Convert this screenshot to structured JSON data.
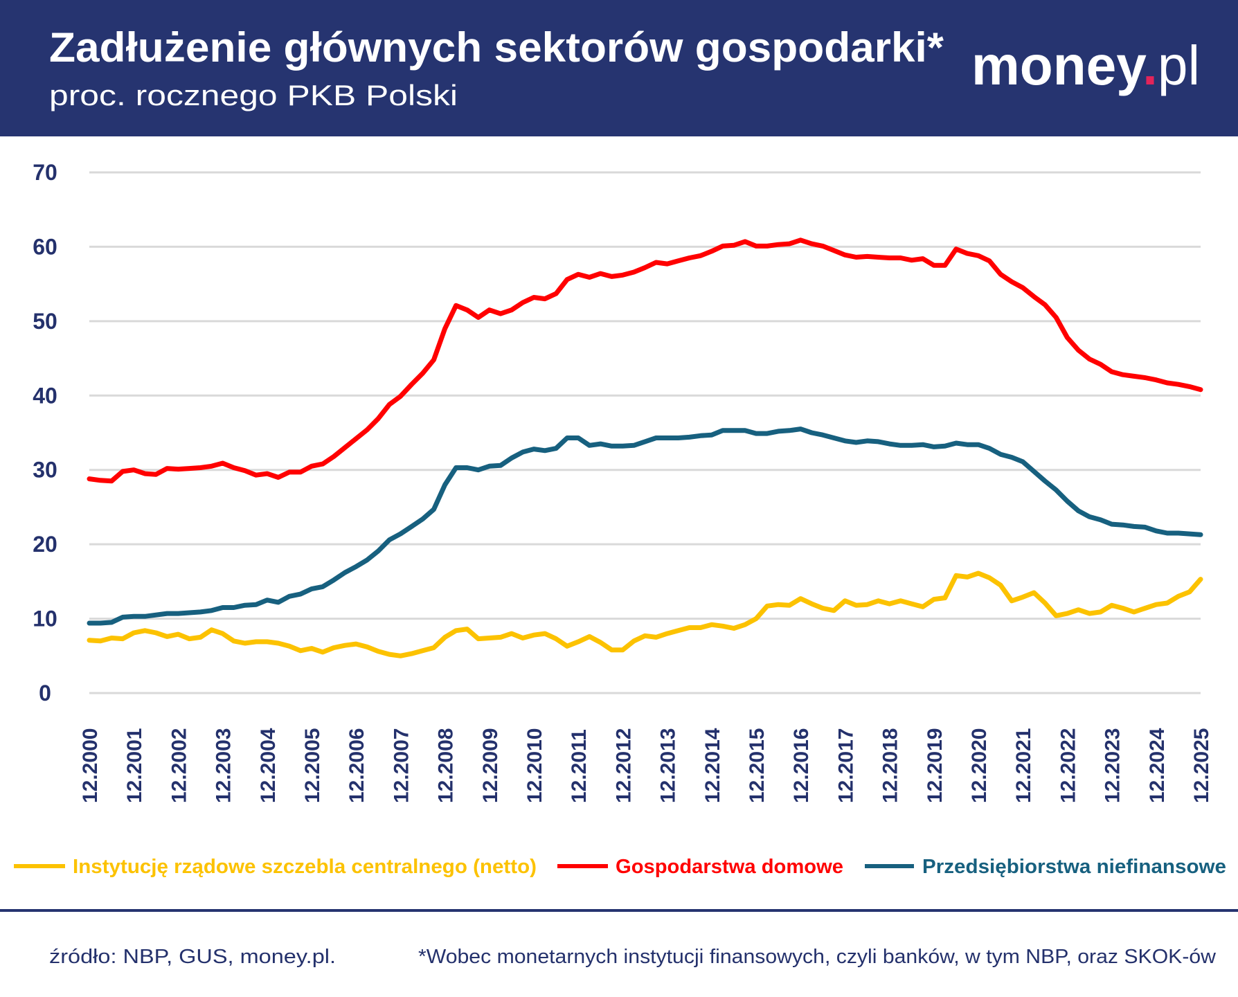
{
  "header": {
    "title": "Zadłużenie głównych sektorów gospodarki*",
    "subtitle": "proc. rocznego PKB Polski",
    "logo_main": "money",
    "logo_dot": ".",
    "logo_suffix": "pl",
    "background_color": "#263470",
    "logo_dot_color": "#e2245a"
  },
  "footer": {
    "source": "źródło: NBP, GUS, money.pl.",
    "note": "*Wobec monetarnych instytucji finansowych, czyli banków, w tym NBP, oraz SKOK-ów"
  },
  "chart_data": {
    "type": "line",
    "title": "Zadłużenie głównych sektorów gospodarki*",
    "subtitle": "proc. rocznego PKB Polski",
    "xlabel": "",
    "ylabel": "",
    "ylim": [
      0,
      70
    ],
    "yticks": [
      "0",
      "10",
      "20",
      "30",
      "40",
      "50",
      "60",
      "70"
    ],
    "grid": true,
    "legend_position": "bottom",
    "x_frequency": "quarterly",
    "x_start": "12.2000",
    "x_end": "12.2025",
    "xticks": [
      "12.2000",
      "12.2001",
      "12.2002",
      "12.2003",
      "12.2004",
      "12.2005",
      "12.2006",
      "12.2007",
      "12.2008",
      "12.2009",
      "12.2010",
      "12.2011",
      "12.2012",
      "12.2013",
      "12.2014",
      "12.2015",
      "12.2016",
      "12.2017",
      "12.2018",
      "12.2019",
      "12.2020",
      "12.2021",
      "12.2022",
      "12.2023",
      "12.2024",
      "12.2025"
    ],
    "series": [
      {
        "name": "Instytucję rządowe szczebla centralnego (netto)",
        "color": "#fcc200",
        "values": [
          7.1,
          7.0,
          7.4,
          7.3,
          8.1,
          8.4,
          8.1,
          7.6,
          7.9,
          7.3,
          7.5,
          8.5,
          8.0,
          7.0,
          6.7,
          6.9,
          6.9,
          6.7,
          6.3,
          5.7,
          6.0,
          5.5,
          6.1,
          6.4,
          6.6,
          6.2,
          5.6,
          5.2,
          5.0,
          5.3,
          5.7,
          6.1,
          7.5,
          8.4,
          8.6,
          7.3,
          7.4,
          7.5,
          8.0,
          7.4,
          7.8,
          8.0,
          7.3,
          6.3,
          6.9,
          7.6,
          6.8,
          5.8,
          5.8,
          7.0,
          7.7,
          7.5,
          8.0,
          8.4,
          8.8,
          8.8,
          9.2,
          9.0,
          8.7,
          9.2,
          10.0,
          11.7,
          11.9,
          11.8,
          12.7,
          12.0,
          11.4,
          11.1,
          12.4,
          11.8,
          11.9,
          12.4,
          12.0,
          12.4,
          12.0,
          11.6,
          12.6,
          12.8,
          15.8,
          15.6,
          16.1,
          15.5,
          14.5,
          12.4,
          12.9,
          13.5,
          12.1,
          10.4,
          10.7,
          11.2,
          10.7,
          10.9,
          11.8,
          11.4,
          10.9,
          11.4,
          11.9,
          12.1,
          13.0,
          13.6,
          15.3
        ]
      },
      {
        "name": "Gospodarstwa domowe",
        "color": "#ff0000",
        "values": [
          28.8,
          28.6,
          28.5,
          29.8,
          30.0,
          29.5,
          29.4,
          30.2,
          30.1,
          30.2,
          30.3,
          30.5,
          30.9,
          30.3,
          29.9,
          29.3,
          29.5,
          29.0,
          29.7,
          29.7,
          30.5,
          30.8,
          31.8,
          33.0,
          34.2,
          35.4,
          36.9,
          38.8,
          39.9,
          41.5,
          43.0,
          44.8,
          49.0,
          52.1,
          51.5,
          50.5,
          51.5,
          51.0,
          51.5,
          52.5,
          53.2,
          53.0,
          53.7,
          55.6,
          56.3,
          55.9,
          56.4,
          56.0,
          56.2,
          56.6,
          57.2,
          57.9,
          57.7,
          58.1,
          58.5,
          58.8,
          59.4,
          60.1,
          60.2,
          60.7,
          60.1,
          60.1,
          60.3,
          60.4,
          60.9,
          60.4,
          60.1,
          59.5,
          58.9,
          58.6,
          58.7,
          58.6,
          58.5,
          58.5,
          58.2,
          58.4,
          57.5,
          57.5,
          59.7,
          59.1,
          58.8,
          58.1,
          56.3,
          55.3,
          54.5,
          53.3,
          52.2,
          50.5,
          47.8,
          46.1,
          44.9,
          44.2,
          43.2,
          42.8,
          42.6,
          42.4,
          42.1,
          41.7,
          41.5,
          41.2,
          40.8
        ]
      },
      {
        "name": "Przedsiębiorstwa niefinansowe",
        "color": "#17607f",
        "values": [
          9.4,
          9.4,
          9.5,
          10.2,
          10.3,
          10.3,
          10.5,
          10.7,
          10.7,
          10.8,
          10.9,
          11.1,
          11.5,
          11.5,
          11.8,
          11.9,
          12.5,
          12.2,
          13.0,
          13.3,
          14.0,
          14.3,
          15.2,
          16.2,
          17.0,
          17.9,
          19.1,
          20.6,
          21.4,
          22.4,
          23.4,
          24.7,
          28.0,
          30.3,
          30.3,
          30.0,
          30.5,
          30.6,
          31.6,
          32.4,
          32.8,
          32.6,
          32.9,
          34.3,
          34.3,
          33.3,
          33.5,
          33.2,
          33.2,
          33.3,
          33.8,
          34.3,
          34.3,
          34.3,
          34.4,
          34.6,
          34.7,
          35.3,
          35.3,
          35.3,
          34.9,
          34.9,
          35.2,
          35.3,
          35.5,
          35.0,
          34.7,
          34.3,
          33.9,
          33.7,
          33.9,
          33.8,
          33.5,
          33.3,
          33.3,
          33.4,
          33.1,
          33.2,
          33.6,
          33.4,
          33.4,
          32.9,
          32.1,
          31.7,
          31.1,
          29.8,
          28.5,
          27.3,
          25.8,
          24.5,
          23.7,
          23.3,
          22.7,
          22.6,
          22.4,
          22.3,
          21.8,
          21.5,
          21.5,
          21.4,
          21.3
        ]
      }
    ]
  }
}
